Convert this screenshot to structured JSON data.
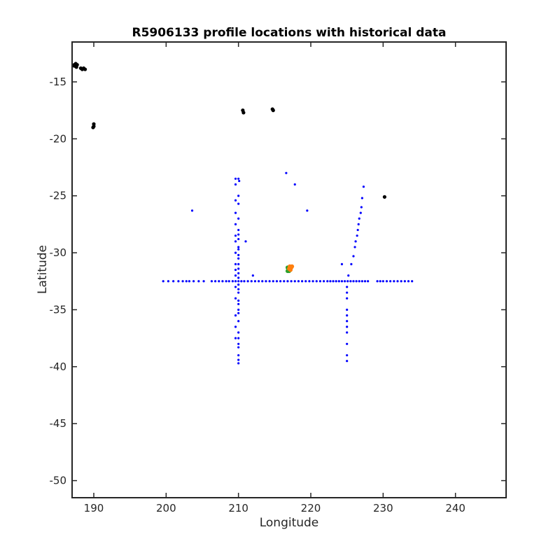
{
  "chart_data": {
    "type": "scatter",
    "title": "R5906133 profile locations with historical data",
    "xlabel": "Longitude",
    "ylabel": "Latitude",
    "xlim": [
      187,
      247
    ],
    "ylim": [
      -51.5,
      -11.5
    ],
    "xticks": [
      190,
      200,
      210,
      220,
      230,
      240
    ],
    "yticks": [
      -15,
      -20,
      -25,
      -30,
      -35,
      -40,
      -45,
      -50
    ],
    "grid": false,
    "colors": {
      "historical": "#0000ff",
      "land": "#000000",
      "profile_start": "#2ca02c",
      "profile_end": "#ff7f0e"
    },
    "series": [
      {
        "role": "historical",
        "points": [
          [
            199.6,
            -32.5
          ],
          [
            200.3,
            -32.5
          ],
          [
            201.0,
            -32.5
          ],
          [
            201.7,
            -32.5
          ],
          [
            202.3,
            -32.5
          ],
          [
            202.8,
            -32.5
          ],
          [
            203.2,
            -32.5
          ],
          [
            203.8,
            -32.5
          ],
          [
            204.5,
            -32.5
          ],
          [
            205.2,
            -32.5
          ],
          [
            206.3,
            -32.5
          ],
          [
            206.8,
            -32.5
          ],
          [
            207.3,
            -32.5
          ],
          [
            207.8,
            -32.5
          ],
          [
            208.3,
            -32.5
          ],
          [
            208.7,
            -32.5
          ],
          [
            209.2,
            -32.5
          ],
          [
            209.6,
            -32.5
          ],
          [
            210.0,
            -32.5
          ],
          [
            210.4,
            -32.5
          ],
          [
            210.8,
            -32.5
          ],
          [
            211.3,
            -32.5
          ],
          [
            211.8,
            -32.5
          ],
          [
            212.3,
            -32.5
          ],
          [
            212.8,
            -32.5
          ],
          [
            213.3,
            -32.5
          ],
          [
            213.8,
            -32.5
          ],
          [
            214.3,
            -32.5
          ],
          [
            214.8,
            -32.5
          ],
          [
            215.3,
            -32.5
          ],
          [
            215.8,
            -32.5
          ],
          [
            216.3,
            -32.5
          ],
          [
            216.8,
            -32.5
          ],
          [
            217.3,
            -32.5
          ],
          [
            217.8,
            -32.5
          ],
          [
            218.3,
            -32.5
          ],
          [
            218.8,
            -32.5
          ],
          [
            219.3,
            -32.5
          ],
          [
            219.8,
            -32.5
          ],
          [
            220.3,
            -32.5
          ],
          [
            220.8,
            -32.5
          ],
          [
            221.3,
            -32.5
          ],
          [
            221.8,
            -32.5
          ],
          [
            222.3,
            -32.5
          ],
          [
            222.7,
            -32.5
          ],
          [
            223.1,
            -32.5
          ],
          [
            223.5,
            -32.5
          ],
          [
            223.9,
            -32.5
          ],
          [
            224.3,
            -32.5
          ],
          [
            224.7,
            -32.5
          ],
          [
            225.1,
            -32.5
          ],
          [
            225.5,
            -32.5
          ],
          [
            225.9,
            -32.5
          ],
          [
            226.3,
            -32.5
          ],
          [
            226.7,
            -32.5
          ],
          [
            227.1,
            -32.5
          ],
          [
            227.5,
            -32.5
          ],
          [
            227.9,
            -32.5
          ],
          [
            229.2,
            -32.5
          ],
          [
            229.6,
            -32.5
          ],
          [
            230.0,
            -32.5
          ],
          [
            230.5,
            -32.5
          ],
          [
            231.0,
            -32.5
          ],
          [
            231.5,
            -32.5
          ],
          [
            232.0,
            -32.5
          ],
          [
            232.5,
            -32.5
          ],
          [
            233.0,
            -32.5
          ],
          [
            233.5,
            -32.5
          ],
          [
            234.0,
            -32.5
          ],
          [
            209.6,
            -23.5
          ],
          [
            210.0,
            -23.5
          ],
          [
            210.1,
            -23.7
          ],
          [
            209.6,
            -24.0
          ],
          [
            210.0,
            -25.0
          ],
          [
            209.6,
            -25.4
          ],
          [
            210.0,
            -25.7
          ],
          [
            209.6,
            -26.5
          ],
          [
            210.0,
            -27.0
          ],
          [
            209.6,
            -27.5
          ],
          [
            210.0,
            -28.0
          ],
          [
            210.0,
            -28.4
          ],
          [
            209.6,
            -28.5
          ],
          [
            210.0,
            -28.8
          ],
          [
            209.6,
            -29.0
          ],
          [
            210.0,
            -29.5
          ],
          [
            210.0,
            -29.7
          ],
          [
            209.6,
            -30.0
          ],
          [
            210.0,
            -30.2
          ],
          [
            210.0,
            -30.5
          ],
          [
            209.6,
            -31.0
          ],
          [
            210.0,
            -31.0
          ],
          [
            210.0,
            -31.4
          ],
          [
            209.6,
            -31.5
          ],
          [
            210.0,
            -31.8
          ],
          [
            209.6,
            -32.0
          ],
          [
            210.0,
            -32.2
          ],
          [
            210.0,
            -32.8
          ],
          [
            209.6,
            -33.0
          ],
          [
            210.0,
            -33.2
          ],
          [
            210.0,
            -33.5
          ],
          [
            209.6,
            -34.0
          ],
          [
            210.0,
            -34.2
          ],
          [
            210.0,
            -34.5
          ],
          [
            210.0,
            -35.0
          ],
          [
            210.0,
            -35.3
          ],
          [
            209.6,
            -35.5
          ],
          [
            210.0,
            -36.0
          ],
          [
            209.6,
            -36.5
          ],
          [
            210.0,
            -37.0
          ],
          [
            209.6,
            -37.5
          ],
          [
            210.0,
            -37.5
          ],
          [
            210.0,
            -38.0
          ],
          [
            210.0,
            -38.3
          ],
          [
            210.0,
            -39.0
          ],
          [
            210.0,
            -39.4
          ],
          [
            210.0,
            -39.7
          ],
          [
            225.0,
            -33.0
          ],
          [
            225.0,
            -33.5
          ],
          [
            225.0,
            -34.0
          ],
          [
            225.0,
            -35.0
          ],
          [
            225.0,
            -35.5
          ],
          [
            225.0,
            -36.0
          ],
          [
            225.0,
            -36.5
          ],
          [
            225.0,
            -37.0
          ],
          [
            225.0,
            -38.0
          ],
          [
            225.0,
            -39.0
          ],
          [
            225.0,
            -39.5
          ],
          [
            225.2,
            -32.0
          ],
          [
            225.6,
            -31.0
          ],
          [
            225.9,
            -30.3
          ],
          [
            226.1,
            -29.5
          ],
          [
            226.2,
            -29.0
          ],
          [
            226.4,
            -28.5
          ],
          [
            226.5,
            -28.0
          ],
          [
            226.6,
            -27.5
          ],
          [
            226.7,
            -27.0
          ],
          [
            226.9,
            -26.5
          ],
          [
            227.0,
            -26.0
          ],
          [
            227.1,
            -25.2
          ],
          [
            227.3,
            -24.2
          ],
          [
            216.6,
            -23.0
          ],
          [
            217.8,
            -24.0
          ],
          [
            203.6,
            -26.3
          ],
          [
            219.5,
            -26.3
          ],
          [
            211.0,
            -29.0
          ],
          [
            224.3,
            -31.0
          ],
          [
            212.0,
            -32.0
          ]
        ]
      },
      {
        "role": "profile_start",
        "points": [
          [
            216.8,
            -31.3
          ],
          [
            216.9,
            -31.5
          ],
          [
            217.0,
            -31.6
          ],
          [
            217.1,
            -31.4
          ],
          [
            216.8,
            -31.6
          ]
        ]
      },
      {
        "role": "profile_end",
        "points": [
          [
            217.1,
            -31.2
          ],
          [
            217.3,
            -31.3
          ],
          [
            217.2,
            -31.5
          ],
          [
            217.0,
            -31.4
          ],
          [
            217.4,
            -31.2
          ]
        ]
      },
      {
        "role": "land",
        "points": [
          [
            187.3,
            -13.5
          ],
          [
            187.5,
            -13.4
          ],
          [
            187.7,
            -13.5
          ],
          [
            187.6,
            -13.7
          ],
          [
            187.3,
            -13.6
          ],
          [
            188.2,
            -13.8
          ],
          [
            188.4,
            -13.9
          ],
          [
            188.6,
            -13.8
          ],
          [
            188.8,
            -13.9
          ],
          [
            190.0,
            -18.7
          ],
          [
            190.0,
            -18.9
          ],
          [
            189.9,
            -19.0
          ],
          [
            210.6,
            -17.5
          ],
          [
            210.7,
            -17.7
          ],
          [
            214.7,
            -17.4
          ],
          [
            214.8,
            -17.5
          ],
          [
            230.2,
            -25.1
          ]
        ]
      }
    ]
  }
}
